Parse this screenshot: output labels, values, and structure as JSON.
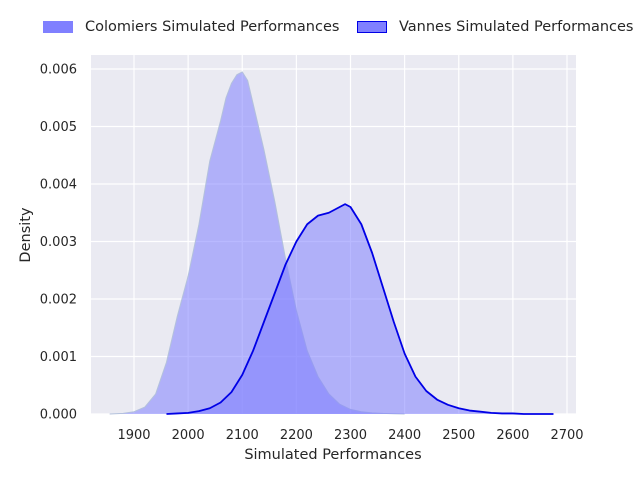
{
  "chart_data": {
    "type": "area",
    "xlabel": "Simulated Performances",
    "ylabel": "Density",
    "xlim": [
      1820,
      2700
    ],
    "ylim": [
      0,
      0.0062
    ],
    "xticks": [
      1900,
      2000,
      2100,
      2200,
      2300,
      2400,
      2500,
      2600,
      2700
    ],
    "yticks": [
      0.0,
      0.001,
      0.002,
      0.003,
      0.004,
      0.005,
      0.006
    ],
    "ytick_labels": [
      "0.000",
      "0.001",
      "0.002",
      "0.003",
      "0.004",
      "0.005",
      "0.006"
    ],
    "grid": true,
    "legend_position": "top",
    "background": "#eaeaf2",
    "series": [
      {
        "name": "Colomiers Simulated Performances",
        "fill": "#8080ff",
        "fill_opacity": 0.55,
        "stroke": "#b3c1dc",
        "x": [
          1855,
          1880,
          1900,
          1920,
          1940,
          1960,
          1980,
          2000,
          2020,
          2040,
          2060,
          2070,
          2080,
          2090,
          2100,
          2110,
          2120,
          2130,
          2140,
          2160,
          2180,
          2200,
          2220,
          2240,
          2260,
          2280,
          2300,
          2320,
          2340,
          2360,
          2380,
          2400
        ],
        "y": [
          0.0,
          1e-05,
          4e-05,
          0.00012,
          0.00035,
          0.0009,
          0.0017,
          0.0024,
          0.0033,
          0.0044,
          0.0051,
          0.0055,
          0.00575,
          0.0059,
          0.00595,
          0.0058,
          0.0054,
          0.005,
          0.0046,
          0.0037,
          0.0027,
          0.0018,
          0.0011,
          0.00065,
          0.00035,
          0.00017,
          8e-05,
          4e-05,
          2e-05,
          1e-05,
          5e-06,
          0.0
        ]
      },
      {
        "name": "Vannes Simulated Performances",
        "fill": "#8080ff",
        "fill_opacity": 0.55,
        "stroke": "#0000e6",
        "x": [
          1960,
          1980,
          2000,
          2020,
          2040,
          2060,
          2080,
          2100,
          2120,
          2140,
          2160,
          2180,
          2200,
          2220,
          2240,
          2260,
          2280,
          2290,
          2300,
          2320,
          2340,
          2360,
          2380,
          2400,
          2420,
          2440,
          2460,
          2480,
          2500,
          2520,
          2540,
          2560,
          2580,
          2600,
          2620,
          2640,
          2660,
          2675
        ],
        "y": [
          0.0,
          1e-05,
          2e-05,
          5e-05,
          0.0001,
          0.0002,
          0.00038,
          0.00068,
          0.0011,
          0.0016,
          0.0021,
          0.0026,
          0.003,
          0.0033,
          0.00345,
          0.0035,
          0.0036,
          0.00365,
          0.0036,
          0.0033,
          0.0028,
          0.0022,
          0.0016,
          0.00105,
          0.00065,
          0.0004,
          0.00025,
          0.00016,
          0.0001,
          6e-05,
          4e-05,
          2e-05,
          1e-05,
          1e-05,
          0.0,
          0.0,
          0.0,
          0.0
        ]
      }
    ]
  }
}
